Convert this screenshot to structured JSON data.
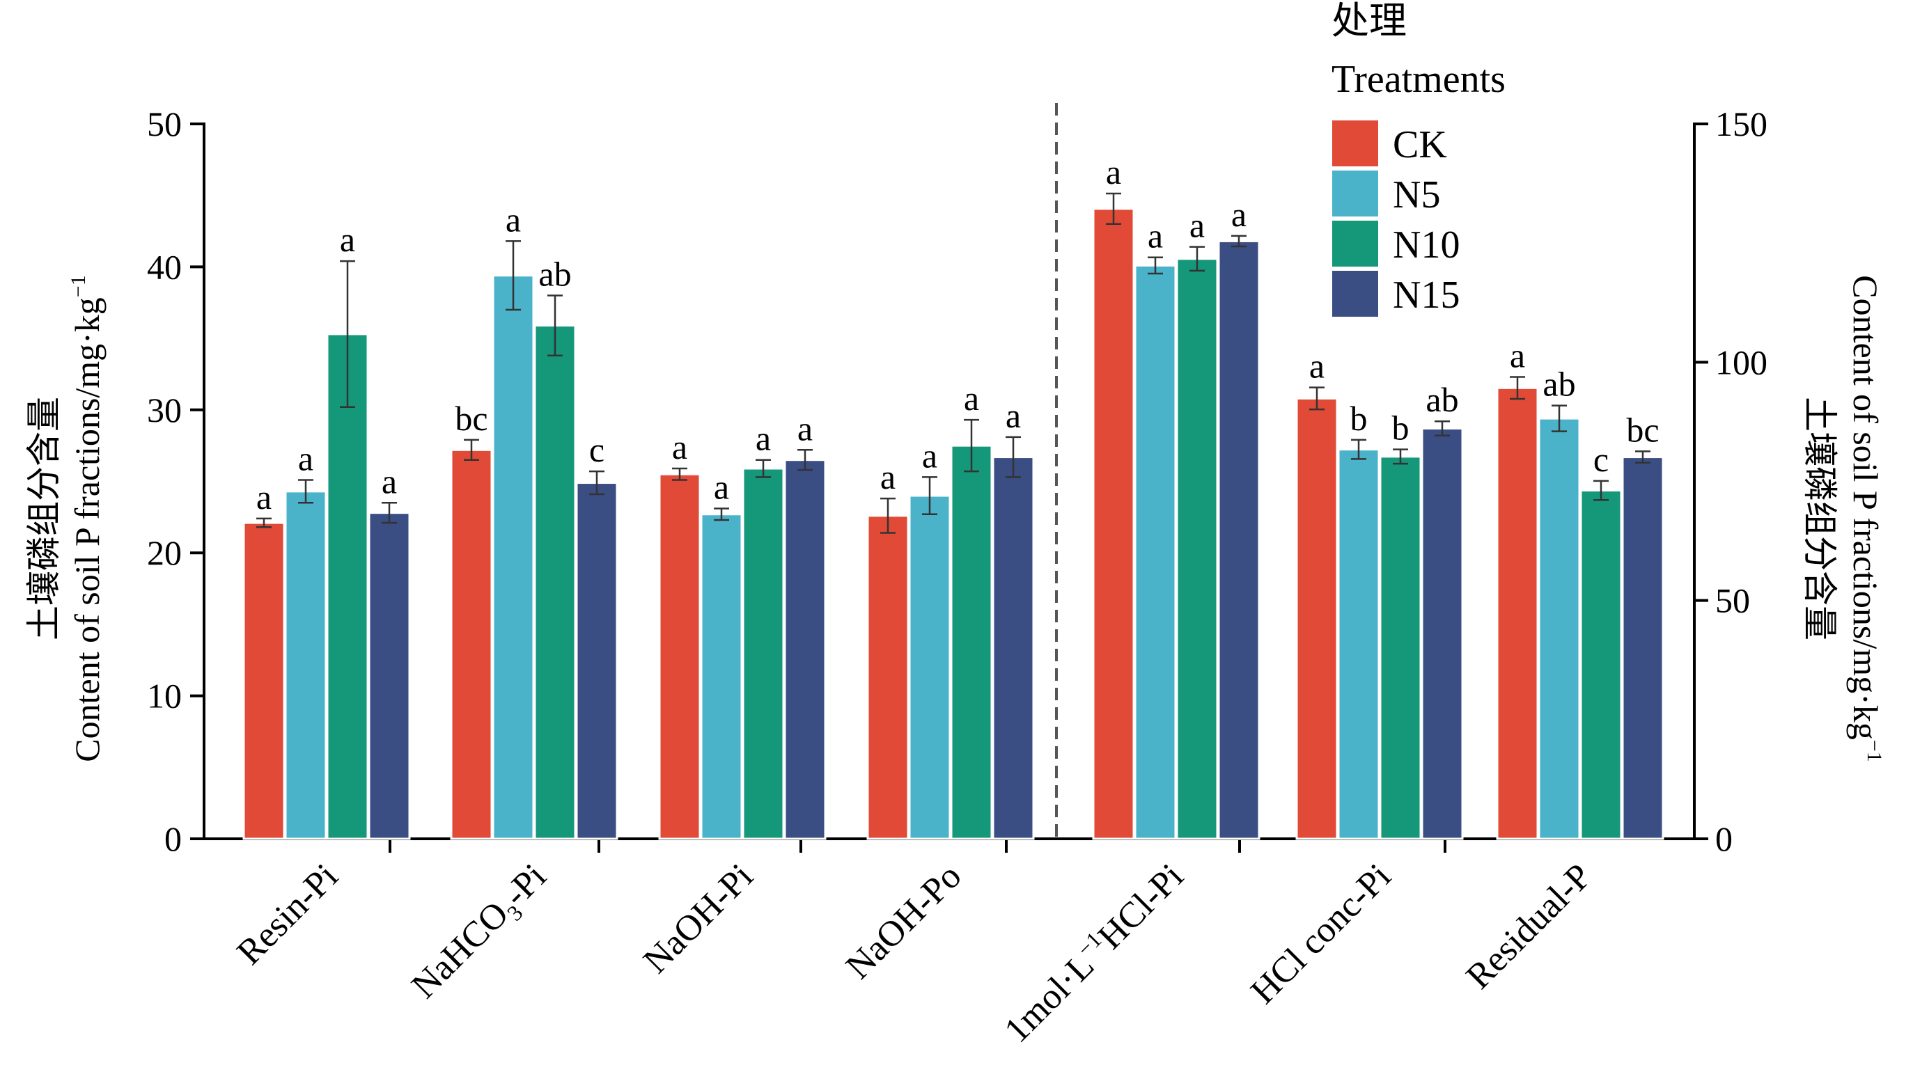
{
  "chart_data": {
    "type": "bar",
    "categories": [
      "Resin-Pi",
      "NaHCO",
      "NaOH-Pi",
      "NaOH-Po",
      "1mol·L",
      "HCl conc-Pi",
      "Residual-P"
    ],
    "category_label_parts": {
      "nahco3": {
        "base": "NaHCO",
        "sub": "3",
        "tail": "-Pi"
      },
      "hcl1": {
        "base": "1mol·L",
        "sup": "−1",
        "tail": "HCl-Pi"
      }
    },
    "series": [
      {
        "name": "CK",
        "color": "#e04a36",
        "values": [
          22.1,
          27.2,
          25.5,
          22.6,
          132.2,
          92.4,
          94.6
        ],
        "errors": [
          0.3,
          0.7,
          0.4,
          1.2,
          3.2,
          2.3,
          2.3
        ],
        "letters": [
          "a",
          "bc",
          "a",
          "a",
          "a",
          "a",
          "a"
        ]
      },
      {
        "name": "N5",
        "color": "#4bb3c9",
        "values": [
          24.3,
          39.4,
          22.7,
          24.0,
          120.3,
          81.7,
          88.2
        ],
        "errors": [
          0.8,
          2.4,
          0.4,
          1.3,
          1.7,
          2.0,
          2.7
        ],
        "letters": [
          "a",
          "a",
          "a",
          "a",
          "a",
          "b",
          "ab"
        ]
      },
      {
        "name": "N10",
        "color": "#15977a",
        "values": [
          35.3,
          35.9,
          25.9,
          27.5,
          121.7,
          80.2,
          73.1
        ],
        "errors": [
          5.1,
          2.1,
          0.6,
          1.8,
          2.5,
          1.5,
          2.0
        ],
        "letters": [
          "a",
          "ab",
          "a",
          "a",
          "a",
          "b",
          "c"
        ]
      },
      {
        "name": "N15",
        "color": "#3a4e84",
        "values": [
          22.8,
          24.9,
          26.5,
          26.7,
          125.4,
          86.1,
          80.1
        ],
        "errors": [
          0.7,
          0.8,
          0.7,
          1.4,
          1.1,
          1.5,
          1.2
        ],
        "letters": [
          "a",
          "c",
          "a",
          "a",
          "a",
          "ab",
          "bc"
        ]
      }
    ],
    "left_axis": {
      "label_cn": "土壤磷组分含量",
      "label_en": "Content of soil P fractions/mg·kg",
      "label_sup": "−1",
      "ylim": [
        0,
        50
      ],
      "ticks": [
        "0",
        "10",
        "20",
        "30",
        "40",
        "50"
      ],
      "applies_to": [
        "Resin-Pi",
        "NaHCO3-Pi",
        "NaOH-Pi",
        "NaOH-Po"
      ]
    },
    "right_axis": {
      "label_cn": "土壤磷组分含量",
      "label_en": "Content of soil P fractions/mg·kg",
      "label_sup": "−1",
      "ylim": [
        0,
        150
      ],
      "ticks": [
        "0",
        "50",
        "100",
        "150"
      ],
      "applies_to": [
        "1mol·L−1HCl-Pi",
        "HCl conc-Pi",
        "Residual-P"
      ]
    },
    "legend": {
      "title_cn": "处理",
      "title_en": "Treatments",
      "position": "top-right"
    },
    "grid": false
  }
}
